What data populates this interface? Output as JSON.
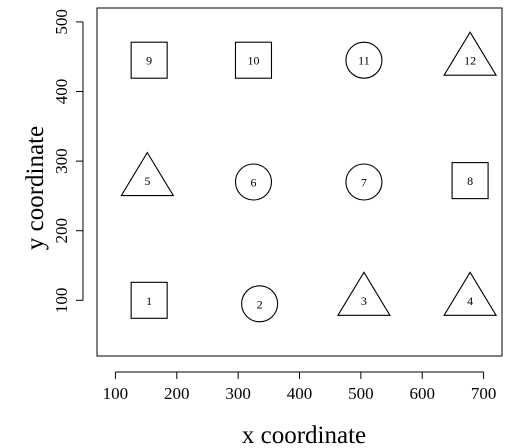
{
  "chart_data": {
    "type": "scatter",
    "xlabel": "x coordinate",
    "ylabel": "y coordinate",
    "xlim": [
      70,
      730
    ],
    "ylim": [
      20,
      520
    ],
    "xticks": [
      100,
      200,
      300,
      400,
      500,
      600,
      700
    ],
    "yticks": [
      100,
      200,
      300,
      400,
      500
    ],
    "grid": false,
    "points": [
      {
        "label": "1",
        "x": 155,
        "y": 100,
        "shape": "square"
      },
      {
        "label": "2",
        "x": 335,
        "y": 95,
        "shape": "circle"
      },
      {
        "label": "3",
        "x": 505,
        "y": 100,
        "shape": "triangle"
      },
      {
        "label": "4",
        "x": 678,
        "y": 100,
        "shape": "triangle"
      },
      {
        "label": "5",
        "x": 152,
        "y": 272,
        "shape": "triangle"
      },
      {
        "label": "6",
        "x": 325,
        "y": 270,
        "shape": "circle"
      },
      {
        "label": "7",
        "x": 505,
        "y": 270,
        "shape": "circle"
      },
      {
        "label": "8",
        "x": 678,
        "y": 272,
        "shape": "square"
      },
      {
        "label": "9",
        "x": 155,
        "y": 445,
        "shape": "square"
      },
      {
        "label": "10",
        "x": 325,
        "y": 445,
        "shape": "square"
      },
      {
        "label": "11",
        "x": 505,
        "y": 445,
        "shape": "circle"
      },
      {
        "label": "12",
        "x": 678,
        "y": 445,
        "shape": "triangle"
      }
    ]
  }
}
